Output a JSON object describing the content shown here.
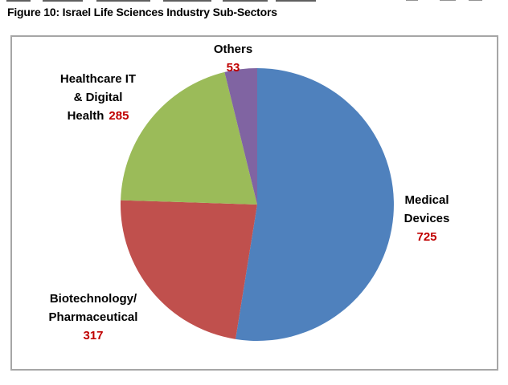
{
  "page": {
    "title": "Figure 10: Israel Life Sciences Industry Sub-Sectors"
  },
  "chart_data": {
    "type": "pie",
    "title": "Figure 10: Israel Life Sciences Industry Sub-Sectors",
    "start_angle_deg": 0,
    "direction": "clockwise",
    "total": 1380,
    "slices": [
      {
        "label": "Medical Devices",
        "value": 725,
        "color": "#4F81BD"
      },
      {
        "label": "Biotechnology/Pharmaceutical",
        "value": 317,
        "color": "#C0504D"
      },
      {
        "label": "Healthcare IT & Digital Health",
        "value": 285,
        "color": "#9BBB59"
      },
      {
        "label": "Others",
        "value": 53,
        "color": "#8064A2"
      }
    ],
    "label_color": "#000000",
    "value_label_color": "#C00000",
    "legend": "none",
    "background": "#FFFFFF",
    "plot_border_color": "#A6A6A6"
  },
  "labels": {
    "others": {
      "line1": "Others",
      "value": "53"
    },
    "healthcare": {
      "line1": "Healthcare IT",
      "line2": "& Digital",
      "line3_text": "Health",
      "value": "285"
    },
    "medical": {
      "line1": "Medical",
      "line2": "Devices",
      "value": "725"
    },
    "biotech": {
      "line1": "Biotechnology/",
      "line2": "Pharmaceutical",
      "value": "317"
    }
  }
}
